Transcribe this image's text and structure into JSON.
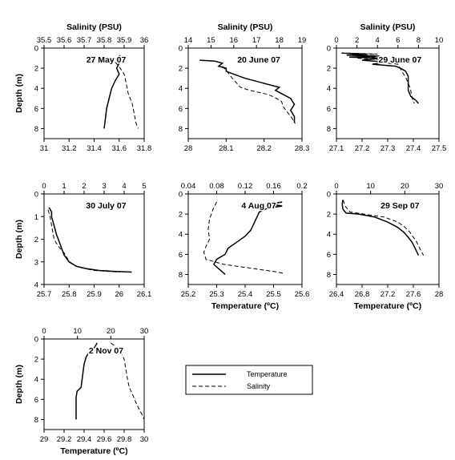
{
  "legend": {
    "temperature": "Temperature",
    "salinity": "Salinity"
  },
  "chart_data": [
    {
      "type": "line",
      "title": "27 May 07",
      "x_label_top": "Salinity (PSU)",
      "x_label_bottom": "",
      "ylabel": "Depth (m)",
      "temp_lim": [
        31,
        31.8
      ],
      "temp_ticks": [
        "31",
        "31.2",
        "31.4",
        "31.6",
        "31.8"
      ],
      "sal_lim": [
        35.5,
        36
      ],
      "sal_ticks": [
        "35.5",
        "35.6",
        "35.7",
        "35.8",
        "35.9",
        "36"
      ],
      "depth_lim": [
        0,
        9
      ],
      "depth_ticks": [
        "0",
        "2",
        "4",
        "6",
        "8"
      ],
      "series": [
        {
          "name": "Temperature",
          "axis": "temp",
          "points": [
            [
              31.6,
              0.7
            ],
            [
              31.62,
              1.0
            ],
            [
              31.6,
              1.5
            ],
            [
              31.58,
              2.0
            ],
            [
              31.6,
              2.6
            ],
            [
              31.57,
              3.2
            ],
            [
              31.54,
              4.0
            ],
            [
              31.52,
              5.0
            ],
            [
              31.5,
              6.0
            ],
            [
              31.49,
              7.0
            ],
            [
              31.48,
              8.0
            ]
          ]
        },
        {
          "name": "Salinity",
          "axis": "sal",
          "points": [
            [
              35.83,
              1.0
            ],
            [
              35.86,
              1.5
            ],
            [
              35.88,
              2.0
            ],
            [
              35.9,
              2.6
            ],
            [
              35.91,
              3.5
            ],
            [
              35.92,
              4.5
            ],
            [
              35.94,
              5.5
            ],
            [
              35.95,
              6.5
            ],
            [
              35.96,
              7.5
            ],
            [
              35.97,
              8.0
            ]
          ]
        }
      ]
    },
    {
      "type": "line",
      "title": "20 June 07",
      "x_label_top": "Salinity (PSU)",
      "x_label_bottom": "",
      "ylabel": "",
      "temp_lim": [
        28,
        28.3
      ],
      "temp_ticks": [
        "28",
        "28.1",
        "28.2",
        "28.3"
      ],
      "sal_lim": [
        14,
        19
      ],
      "sal_ticks": [
        "14",
        "15",
        "16",
        "17",
        "18",
        "19"
      ],
      "depth_lim": [
        0,
        9
      ],
      "depth_ticks": [
        "0",
        "2",
        "4",
        "6",
        "8"
      ],
      "series": [
        {
          "name": "Temperature",
          "axis": "temp",
          "points": [
            [
              28.03,
              1.2
            ],
            [
              28.07,
              1.3
            ],
            [
              28.09,
              1.5
            ],
            [
              28.08,
              1.8
            ],
            [
              28.1,
              2.0
            ],
            [
              28.1,
              2.3
            ],
            [
              28.12,
              2.6
            ],
            [
              28.15,
              3.0
            ],
            [
              28.19,
              3.4
            ],
            [
              28.22,
              3.7
            ],
            [
              28.24,
              3.9
            ],
            [
              28.23,
              4.2
            ],
            [
              28.25,
              4.6
            ],
            [
              28.27,
              5.0
            ],
            [
              28.28,
              5.6
            ],
            [
              28.27,
              6.2
            ],
            [
              28.28,
              6.8
            ],
            [
              28.28,
              7.4
            ]
          ]
        },
        {
          "name": "Salinity",
          "axis": "sal",
          "points": [
            [
              15.5,
              1.8
            ],
            [
              15.7,
              2.3
            ],
            [
              15.9,
              2.9
            ],
            [
              16.1,
              3.4
            ],
            [
              16.3,
              3.9
            ],
            [
              16.7,
              4.2
            ],
            [
              17.1,
              4.4
            ],
            [
              17.5,
              4.6
            ],
            [
              17.8,
              4.9
            ],
            [
              18.1,
              5.3
            ],
            [
              18.2,
              5.9
            ],
            [
              18.4,
              6.5
            ],
            [
              18.6,
              7.1
            ],
            [
              18.7,
              7.5
            ]
          ]
        }
      ]
    },
    {
      "type": "line",
      "title": "29 June 07",
      "x_label_top": "Salinity (PSU)",
      "x_label_bottom": "",
      "ylabel": "",
      "temp_lim": [
        27.1,
        27.5
      ],
      "temp_ticks": [
        "27.1",
        "27.2",
        "27.3",
        "27.4",
        "27.5"
      ],
      "sal_lim": [
        0,
        10
      ],
      "sal_ticks": [
        "0",
        "2",
        "4",
        "6",
        "8",
        "10"
      ],
      "depth_lim": [
        0,
        9
      ],
      "depth_ticks": [
        "0",
        "2",
        "4",
        "6",
        "8"
      ],
      "series": [
        {
          "name": "Temperature",
          "axis": "temp",
          "points": [
            [
              27.12,
              0.5
            ],
            [
              27.22,
              0.6
            ],
            [
              27.14,
              0.7
            ],
            [
              27.26,
              0.8
            ],
            [
              27.15,
              0.9
            ],
            [
              27.28,
              1.0
            ],
            [
              27.2,
              1.2
            ],
            [
              27.3,
              1.4
            ],
            [
              27.24,
              1.6
            ],
            [
              27.33,
              1.8
            ],
            [
              27.35,
              2.0
            ],
            [
              27.37,
              2.3
            ],
            [
              27.38,
              2.8
            ],
            [
              27.38,
              3.5
            ],
            [
              27.38,
              4.2
            ],
            [
              27.39,
              4.8
            ],
            [
              27.41,
              5.2
            ],
            [
              27.42,
              5.5
            ]
          ]
        },
        {
          "name": "Salinity",
          "axis": "sal",
          "points": [
            [
              1.2,
              0.5
            ],
            [
              4.0,
              0.6
            ],
            [
              1.0,
              0.7
            ],
            [
              4.5,
              0.8
            ],
            [
              2.0,
              1.0
            ],
            [
              5.0,
              1.2
            ],
            [
              4.0,
              1.4
            ],
            [
              6.0,
              1.6
            ],
            [
              6.2,
              2.0
            ],
            [
              6.5,
              2.5
            ],
            [
              6.8,
              3.0
            ],
            [
              7.0,
              3.5
            ],
            [
              7.2,
              4.0
            ],
            [
              7.3,
              4.5
            ],
            [
              7.4,
              5.0
            ],
            [
              7.6,
              5.5
            ]
          ]
        }
      ]
    },
    {
      "type": "line",
      "title": "30 July 07",
      "x_label_top": "",
      "x_label_bottom": "",
      "ylabel": "Depth (m)",
      "temp_lim": [
        25.7,
        26.1
      ],
      "temp_ticks": [
        "25.7",
        "25.8",
        "25.9",
        "26",
        "26.1"
      ],
      "sal_lim": [
        0,
        5
      ],
      "sal_ticks": [
        "0",
        "1",
        "2",
        "3",
        "4",
        "5"
      ],
      "depth_lim": [
        0,
        4
      ],
      "depth_ticks": [
        "0",
        "1",
        "2",
        "3",
        "4"
      ],
      "series": [
        {
          "name": "Temperature",
          "axis": "temp",
          "points": [
            [
              25.72,
              0.6
            ],
            [
              25.73,
              0.8
            ],
            [
              25.73,
              1.0
            ],
            [
              25.74,
              1.4
            ],
            [
              25.75,
              1.8
            ],
            [
              25.76,
              2.1
            ],
            [
              25.77,
              2.4
            ],
            [
              25.78,
              2.7
            ],
            [
              25.8,
              3.0
            ],
            [
              25.83,
              3.2
            ],
            [
              25.87,
              3.3
            ],
            [
              25.92,
              3.38
            ],
            [
              25.98,
              3.42
            ],
            [
              26.05,
              3.45
            ]
          ]
        },
        {
          "name": "Salinity",
          "axis": "sal",
          "points": [
            [
              0.2,
              0.7
            ],
            [
              0.3,
              1.0
            ],
            [
              0.4,
              1.5
            ],
            [
              0.5,
              2.0
            ],
            [
              0.7,
              2.3
            ],
            [
              1.0,
              2.6
            ],
            [
              1.2,
              2.9
            ],
            [
              1.4,
              3.1
            ],
            [
              1.8,
              3.25
            ],
            [
              2.5,
              3.38
            ],
            [
              3.2,
              3.42
            ],
            [
              3.8,
              3.45
            ]
          ]
        }
      ]
    },
    {
      "type": "line",
      "title": "4 Aug 07",
      "x_label_top": "",
      "x_label_bottom": "Temperature (ºC)",
      "ylabel": "",
      "temp_lim": [
        25.2,
        25.6
      ],
      "temp_ticks": [
        "25.2",
        "25.3",
        "25.4",
        "25.5",
        "25.6"
      ],
      "sal_lim": [
        0.04,
        0.2
      ],
      "sal_ticks": [
        "0.04",
        "0.08",
        "0.12",
        "0.16",
        "0.2"
      ],
      "depth_lim": [
        0,
        9
      ],
      "depth_ticks": [
        "0",
        "2",
        "4",
        "6",
        "8"
      ],
      "series": [
        {
          "name": "Temperature",
          "axis": "temp",
          "points": [
            [
              25.53,
              0.8
            ],
            [
              25.49,
              1.0
            ],
            [
              25.53,
              1.2
            ],
            [
              25.48,
              1.4
            ],
            [
              25.45,
              1.8
            ],
            [
              25.44,
              2.4
            ],
            [
              25.43,
              3.0
            ],
            [
              25.42,
              3.6
            ],
            [
              25.4,
              4.2
            ],
            [
              25.37,
              4.8
            ],
            [
              25.34,
              5.4
            ],
            [
              25.33,
              6.0
            ],
            [
              25.3,
              6.5
            ],
            [
              25.29,
              7.0
            ],
            [
              25.31,
              7.5
            ],
            [
              25.33,
              8.0
            ]
          ]
        },
        {
          "name": "Salinity",
          "axis": "sal",
          "points": [
            [
              0.08,
              0.8
            ],
            [
              0.075,
              1.5
            ],
            [
              0.07,
              2.5
            ],
            [
              0.068,
              3.5
            ],
            [
              0.07,
              4.5
            ],
            [
              0.065,
              5.2
            ],
            [
              0.062,
              5.8
            ],
            [
              0.065,
              6.5
            ],
            [
              0.09,
              7.0
            ],
            [
              0.13,
              7.4
            ],
            [
              0.16,
              7.7
            ],
            [
              0.175,
              7.9
            ]
          ]
        }
      ]
    },
    {
      "type": "line",
      "title": "29 Sep 07",
      "x_label_top": "",
      "x_label_bottom": "Temperature (ºC)",
      "ylabel": "",
      "temp_lim": [
        26.4,
        28
      ],
      "temp_ticks": [
        "26.4",
        "26.8",
        "27.2",
        "27.6",
        "28"
      ],
      "sal_lim": [
        0,
        30
      ],
      "sal_ticks": [
        "0",
        "10",
        "20",
        "30"
      ],
      "depth_lim": [
        0,
        9
      ],
      "depth_ticks": [
        "0",
        "2",
        "4",
        "6",
        "8"
      ],
      "series": [
        {
          "name": "Temperature",
          "axis": "temp",
          "points": [
            [
              26.5,
              0.6
            ],
            [
              26.49,
              1.0
            ],
            [
              26.5,
              1.5
            ],
            [
              26.55,
              1.9
            ],
            [
              26.75,
              2.0
            ],
            [
              27.0,
              2.3
            ],
            [
              27.2,
              2.8
            ],
            [
              27.35,
              3.3
            ],
            [
              27.45,
              3.8
            ],
            [
              27.52,
              4.3
            ],
            [
              27.58,
              4.8
            ],
            [
              27.62,
              5.3
            ],
            [
              27.65,
              5.7
            ],
            [
              27.68,
              6.1
            ]
          ]
        },
        {
          "name": "Salinity",
          "axis": "sal",
          "points": [
            [
              2.0,
              0.6
            ],
            [
              2.5,
              1.2
            ],
            [
              4.0,
              1.8
            ],
            [
              8.0,
              2.0
            ],
            [
              14.0,
              2.3
            ],
            [
              18.0,
              2.8
            ],
            [
              20.0,
              3.3
            ],
            [
              21.5,
              3.8
            ],
            [
              22.5,
              4.3
            ],
            [
              23.5,
              4.8
            ],
            [
              24.2,
              5.3
            ],
            [
              24.8,
              5.7
            ],
            [
              25.5,
              6.1
            ]
          ]
        }
      ]
    },
    {
      "type": "line",
      "title": "2 Nov 07",
      "x_label_top": "",
      "x_label_bottom": "Temperature (ºC)",
      "ylabel": "Depth (m)",
      "temp_lim": [
        29,
        30
      ],
      "temp_ticks": [
        "29",
        "29.2",
        "29.4",
        "29.6",
        "29.8",
        "30"
      ],
      "sal_lim": [
        0,
        30
      ],
      "sal_ticks": [
        "0",
        "10",
        "20",
        "30"
      ],
      "depth_lim": [
        0,
        9
      ],
      "depth_ticks": [
        "0",
        "2",
        "4",
        "6",
        "8"
      ],
      "series": [
        {
          "name": "Temperature",
          "axis": "temp",
          "points": [
            [
              29.53,
              0.4
            ],
            [
              29.5,
              0.9
            ],
            [
              29.45,
              1.3
            ],
            [
              29.42,
              1.8
            ],
            [
              29.4,
              2.5
            ],
            [
              29.39,
              3.2
            ],
            [
              29.38,
              4.0
            ],
            [
              29.37,
              4.8
            ],
            [
              29.33,
              5.2
            ],
            [
              29.32,
              5.8
            ],
            [
              29.32,
              6.5
            ],
            [
              29.32,
              7.2
            ],
            [
              29.32,
              8.0
            ]
          ]
        },
        {
          "name": "Salinity",
          "axis": "sal",
          "points": [
            [
              20.0,
              0.4
            ],
            [
              22.0,
              0.9
            ],
            [
              23.0,
              1.3
            ],
            [
              24.0,
              2.0
            ],
            [
              24.5,
              3.0
            ],
            [
              25.0,
              4.0
            ],
            [
              25.5,
              4.8
            ],
            [
              26.5,
              5.5
            ],
            [
              27.5,
              6.3
            ],
            [
              28.5,
              7.0
            ],
            [
              29.5,
              7.6
            ],
            [
              30.0,
              8.0
            ]
          ]
        }
      ]
    }
  ]
}
